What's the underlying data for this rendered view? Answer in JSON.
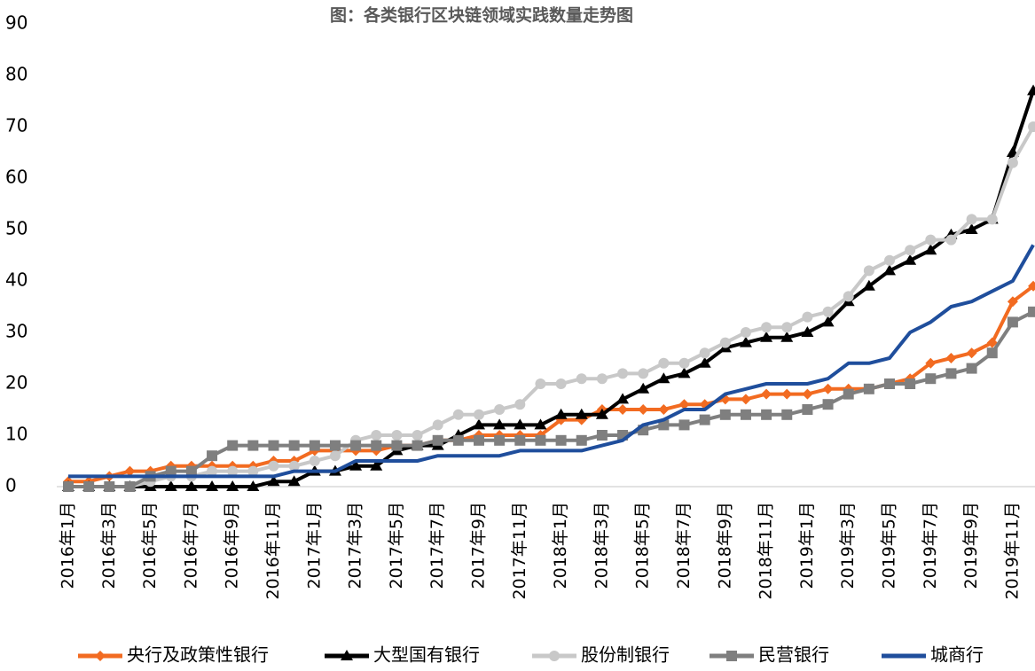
{
  "chart_data": {
    "type": "line",
    "title": "图：各类银行区块链领域实践数量走势图",
    "categories": [
      "2016年1月",
      null,
      "2016年3月",
      null,
      "2016年5月",
      null,
      "2016年7月",
      null,
      "2016年9月",
      null,
      "2016年11月",
      null,
      "2017年1月",
      null,
      "2017年3月",
      null,
      "2017年5月",
      null,
      "2017年7月",
      null,
      "2017年9月",
      null,
      "2017年11月",
      null,
      "2018年1月",
      null,
      "2018年3月",
      null,
      "2018年5月",
      null,
      "2018年7月",
      null,
      "2018年9月",
      null,
      "2018年11月",
      null,
      "2019年1月",
      null,
      "2019年3月",
      null,
      "2019年5月",
      null,
      "2019年7月",
      null,
      "2019年9月",
      null,
      "2019年11月",
      null
    ],
    "series": [
      {
        "name": "央行及政策性银行",
        "color": "#f26b21",
        "marker": "diamond",
        "values": [
          1,
          1,
          2,
          3,
          3,
          4,
          4,
          4,
          4,
          4,
          5,
          5,
          7,
          7,
          7,
          7,
          8,
          8,
          9,
          9,
          10,
          10,
          10,
          10,
          13,
          13,
          15,
          15,
          15,
          15,
          16,
          16,
          17,
          17,
          18,
          18,
          18,
          19,
          19,
          19,
          20,
          21,
          24,
          25,
          26,
          28,
          36,
          39
        ]
      },
      {
        "name": "大型国有银行",
        "color": "#000000",
        "marker": "triangle",
        "values": [
          0,
          0,
          0,
          0,
          0,
          0,
          0,
          0,
          0,
          0,
          1,
          1,
          3,
          3,
          4,
          4,
          7,
          8,
          8,
          10,
          12,
          12,
          12,
          12,
          14,
          14,
          14,
          17,
          19,
          21,
          22,
          24,
          27,
          28,
          29,
          29,
          30,
          32,
          36,
          39,
          42,
          44,
          46,
          49,
          50,
          52,
          65,
          77
        ]
      },
      {
        "name": "股份制银行",
        "color": "#c8c8c8",
        "marker": "circle",
        "values": [
          0,
          0,
          0,
          0,
          1,
          2,
          2,
          3,
          3,
          3,
          4,
          4,
          5,
          6,
          9,
          10,
          10,
          10,
          12,
          14,
          14,
          15,
          16,
          20,
          20,
          21,
          21,
          22,
          22,
          24,
          24,
          26,
          28,
          30,
          31,
          31,
          33,
          34,
          37,
          42,
          44,
          46,
          48,
          48,
          52,
          52,
          63,
          70
        ]
      },
      {
        "name": "民营银行",
        "color": "#7f7f7f",
        "marker": "square",
        "values": [
          0,
          0,
          0,
          0,
          2,
          3,
          3,
          6,
          8,
          8,
          8,
          8,
          8,
          8,
          8,
          8,
          8,
          8,
          9,
          9,
          9,
          9,
          9,
          9,
          9,
          9,
          10,
          10,
          11,
          12,
          12,
          13,
          14,
          14,
          14,
          14,
          15,
          16,
          18,
          19,
          20,
          20,
          21,
          22,
          23,
          26,
          32,
          34
        ]
      },
      {
        "name": "城商行",
        "color": "#1f4e9c",
        "marker": "none",
        "values": [
          2,
          2,
          2,
          2,
          2,
          2,
          2,
          2,
          2,
          2,
          2,
          3,
          3,
          3,
          5,
          5,
          5,
          5,
          6,
          6,
          6,
          6,
          7,
          7,
          7,
          7,
          8,
          9,
          12,
          13,
          15,
          15,
          18,
          19,
          20,
          20,
          20,
          21,
          24,
          24,
          25,
          30,
          32,
          35,
          36,
          38,
          40,
          47
        ]
      }
    ],
    "ylim": [
      0,
      90
    ],
    "yticks": [
      0,
      10,
      20,
      30,
      40,
      50,
      60,
      70,
      80,
      90
    ],
    "legend": "bottom"
  }
}
